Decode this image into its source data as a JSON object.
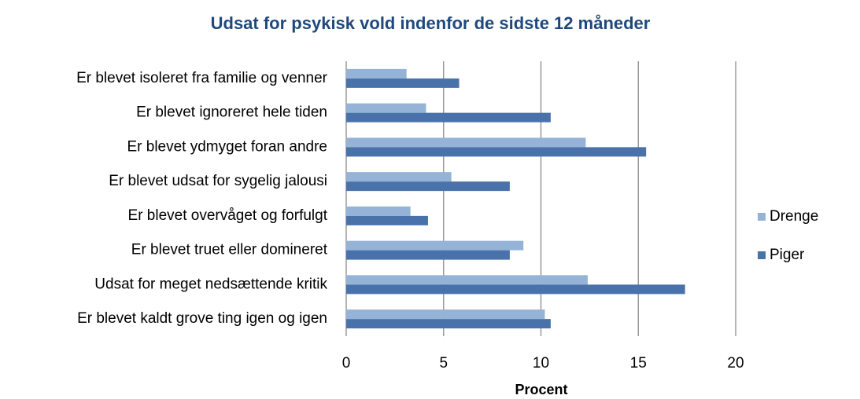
{
  "chart_data": {
    "type": "hbar",
    "title": "Udsat for psykisk vold indenfor de sidste 12 måneder",
    "xlabel": "Procent",
    "categories": [
      "Er blevet isoleret fra familie og venner",
      "Er blevet ignoreret hele tiden",
      "Er blevet ydmyget foran andre",
      "Er blevet udsat for sygelig jalousi",
      "Er blevet overvåget og forfulgt",
      "Er blevet truet eller domineret",
      "Udsat for meget nedsættende kritik",
      "Er blevet kaldt grove ting igen og igen"
    ],
    "series": [
      {
        "name": "Drenge",
        "color": "#95b3d7",
        "values": [
          3.1,
          4.1,
          12.3,
          5.4,
          3.3,
          9.1,
          12.4,
          10.2
        ]
      },
      {
        "name": "Piger",
        "color": "#4a72aa",
        "values": [
          5.8,
          10.5,
          15.4,
          8.4,
          4.2,
          8.4,
          17.4,
          10.5
        ]
      }
    ],
    "xlim": [
      0,
      20
    ],
    "xticks": [
      0,
      5,
      10,
      15,
      20
    ],
    "grid": true,
    "legend": "right"
  }
}
